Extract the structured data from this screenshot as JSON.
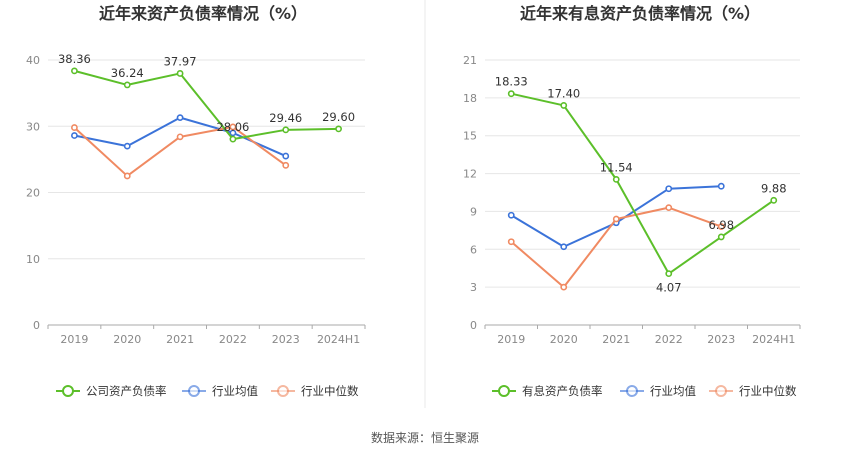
{
  "chart_data": [
    {
      "type": "line",
      "title": "近年来资产负债率情况（%）",
      "categories": [
        "2019",
        "2020",
        "2021",
        "2022",
        "2023",
        "2024H1"
      ],
      "ylim": [
        0,
        40
      ],
      "yticks": [
        0,
        10,
        20,
        30,
        40
      ],
      "grid": true,
      "legend_position": "bottom",
      "series": [
        {
          "name": "公司资产负债率",
          "color": "#5cbf2a",
          "values": [
            38.36,
            36.24,
            37.97,
            28.06,
            29.46,
            29.6
          ],
          "labels": [
            "38.36",
            "36.24",
            "37.97",
            "28.06",
            "29.46",
            "29.60"
          ]
        },
        {
          "name": "行业均值",
          "color": "#3b73d9",
          "values": [
            28.6,
            27.0,
            31.3,
            29.0,
            25.5,
            null
          ]
        },
        {
          "name": "行业中位数",
          "color": "#f08a62",
          "values": [
            29.8,
            22.5,
            28.4,
            29.9,
            24.1,
            null
          ]
        }
      ]
    },
    {
      "type": "line",
      "title": "近年来有息资产负债率情况（%）",
      "categories": [
        "2019",
        "2020",
        "2021",
        "2022",
        "2023",
        "2024H1"
      ],
      "ylim": [
        0,
        21
      ],
      "yticks": [
        0,
        3,
        6,
        9,
        12,
        15,
        18,
        21
      ],
      "grid": true,
      "legend_position": "bottom",
      "series": [
        {
          "name": "有息资产负债率",
          "color": "#5cbf2a",
          "values": [
            18.33,
            17.4,
            11.54,
            4.07,
            6.98,
            9.88
          ],
          "labels": [
            "18.33",
            "17.40",
            "11.54",
            "4.07",
            "6.98",
            "9.88"
          ]
        },
        {
          "name": "行业均值",
          "color": "#3b73d9",
          "values": [
            8.7,
            6.2,
            8.1,
            10.8,
            11.0,
            null
          ]
        },
        {
          "name": "行业中位数",
          "color": "#f08a62",
          "values": [
            6.6,
            3.0,
            8.4,
            9.3,
            7.8,
            null
          ]
        }
      ]
    }
  ],
  "footer": {
    "source": "数据来源：恒生聚源"
  }
}
